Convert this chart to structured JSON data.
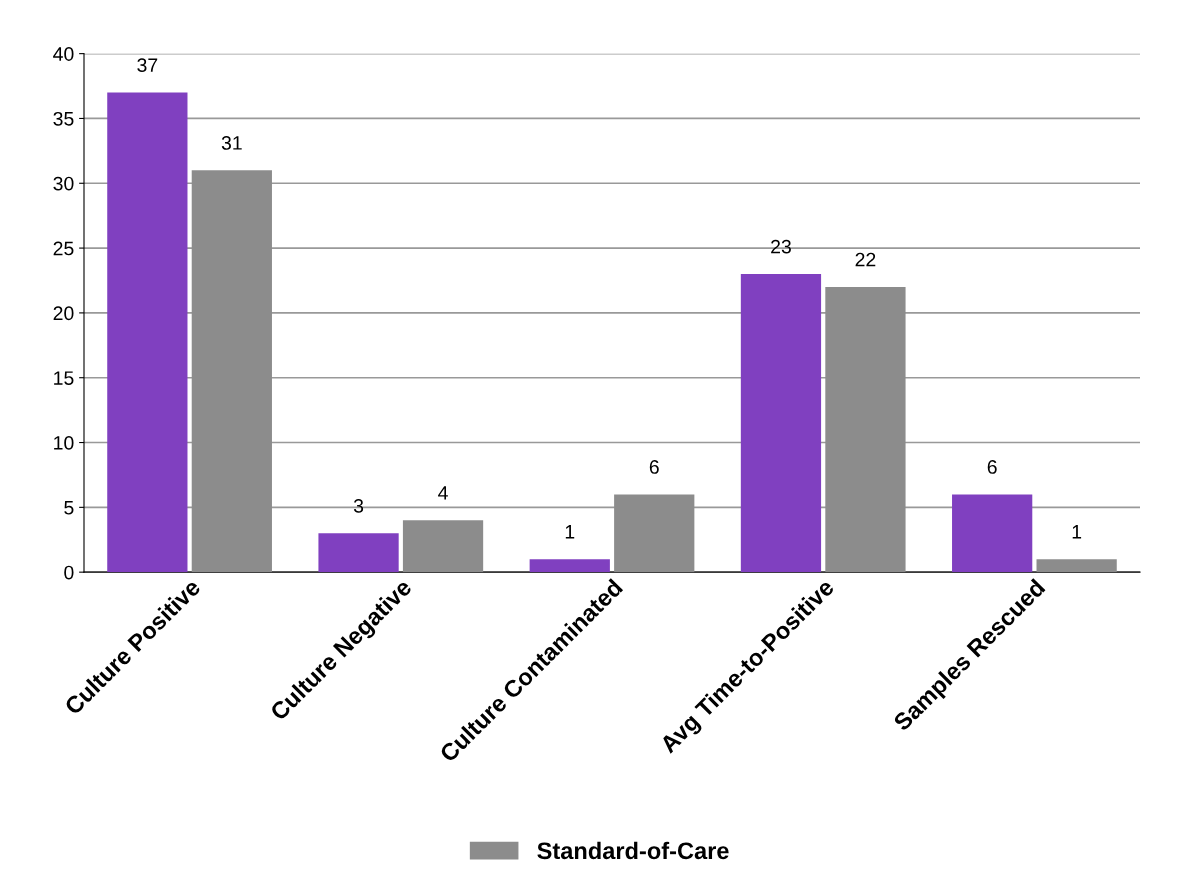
{
  "chart_data": {
    "type": "bar",
    "categories": [
      "Culture Positive",
      "Culture Negative",
      "Culture Contaminated",
      "Avg Time-to-Positive",
      "Samples Rescued"
    ],
    "series": [
      {
        "color": "#8040c0",
        "values": [
          37,
          3,
          1,
          23,
          6
        ]
      },
      {
        "name": "Standard-of-Care",
        "color": "#8c8c8c",
        "values": [
          31,
          4,
          6,
          22,
          1
        ]
      }
    ],
    "ylim": [
      0,
      40
    ],
    "yticks": [
      0,
      5,
      10,
      15,
      20,
      25,
      30,
      35,
      40
    ],
    "grid": "y",
    "legend": "bottom",
    "data_labels": true
  }
}
